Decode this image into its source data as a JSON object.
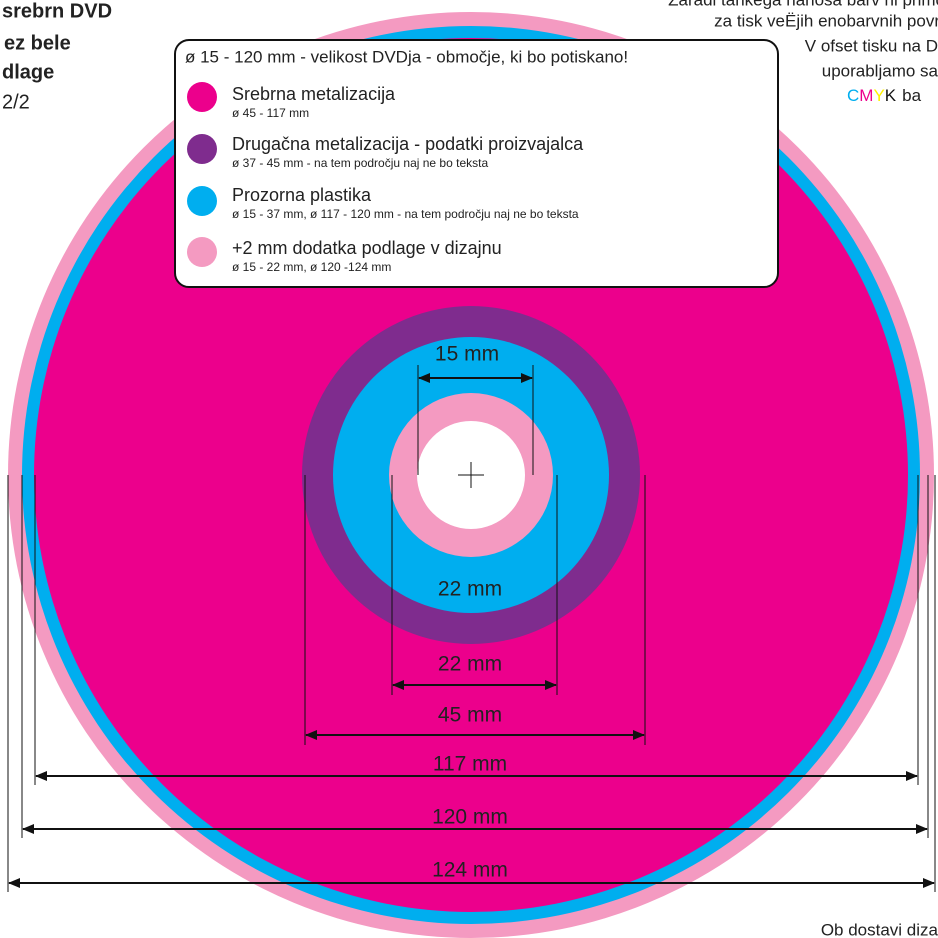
{
  "header_left": {
    "lines": [
      "srebrn DVD",
      "ez bele",
      "dlage"
    ],
    "page": "2/2"
  },
  "note_right": {
    "lines": [
      "Zaradi tankega nanosa barv ni primo",
      "za tisk veËjih enobarvnih povr",
      "V ofset tisku na D",
      "uporabljamo sa"
    ],
    "cmyk": [
      "C",
      "M",
      "Y",
      "K"
    ],
    "cmyk_tail": "ba"
  },
  "legend": {
    "title": "ø 15 - 120 mm - velikost DVDja - območje, ki bo potiskano!",
    "items": [
      {
        "label": "Srebrna metalizacija",
        "detail": "ø 45 - 117 mm"
      },
      {
        "label": "Drugačna metalizacija - podatki proizvajalca",
        "detail": "ø 37 -  45 mm - na tem področju naj ne bo teksta"
      },
      {
        "label": "Prozorna plastika",
        "detail": "ø 15 - 37 mm, ø 117 - 120 mm - na tem področju naj ne bo teksta"
      },
      {
        "label": "+2 mm dodatka podlage v dizajnu",
        "detail": "ø 15 - 22 mm, ø 120 -124 mm"
      }
    ]
  },
  "dimensions": {
    "hole": "15 mm",
    "inner_label": "22 mm",
    "ring": "22 mm",
    "metal": "45 mm",
    "silver": "117 mm",
    "disc": "120 mm",
    "bleed": "124 mm"
  },
  "footer": "Ob dostavi diza"
}
